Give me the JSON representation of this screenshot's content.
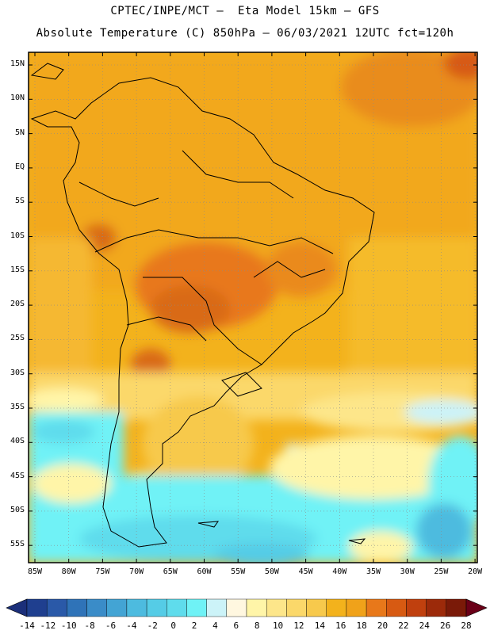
{
  "header": {
    "line1": "CPTEC/INPE/MCT –  Eta Model 15km – GFS",
    "line2": "Absolute Temperature (C) 850hPa – 06/03/2021 12UTC fct=120h"
  },
  "map": {
    "lat_labels": [
      "15N",
      "10N",
      "5N",
      "EQ",
      "5S",
      "10S",
      "15S",
      "20S",
      "25S",
      "30S",
      "35S",
      "40S",
      "45S",
      "50S",
      "55S"
    ],
    "lon_labels": [
      "85W",
      "80W",
      "75W",
      "70W",
      "65W",
      "60W",
      "55W",
      "50W",
      "45W",
      "40W",
      "35W",
      "30W",
      "25W",
      "20W"
    ]
  },
  "colorbar": {
    "labels": [
      "-14",
      "-12",
      "-10",
      "-8",
      "-6",
      "-4",
      "-2",
      "0",
      "2",
      "4",
      "6",
      "8",
      "10",
      "12",
      "14",
      "16",
      "18",
      "20",
      "22",
      "24",
      "26",
      "28"
    ],
    "colors": [
      "#1f3f8f",
      "#2a59a8",
      "#2f73b8",
      "#3a8cc8",
      "#43a4d4",
      "#4dbbdf",
      "#55cce6",
      "#5fdcec",
      "#6ff2f6",
      "#ccf3f8",
      "#fff7e0",
      "#fff5a8",
      "#fde68a",
      "#fbd86a",
      "#f7c94c",
      "#f3b21c",
      "#f0a21a",
      "#e8781a",
      "#d75a12",
      "#c0400e",
      "#9c2a0a",
      "#7a1a08"
    ],
    "left_end_color": "#1b2f7a",
    "right_end_color": "#6a0018"
  }
}
